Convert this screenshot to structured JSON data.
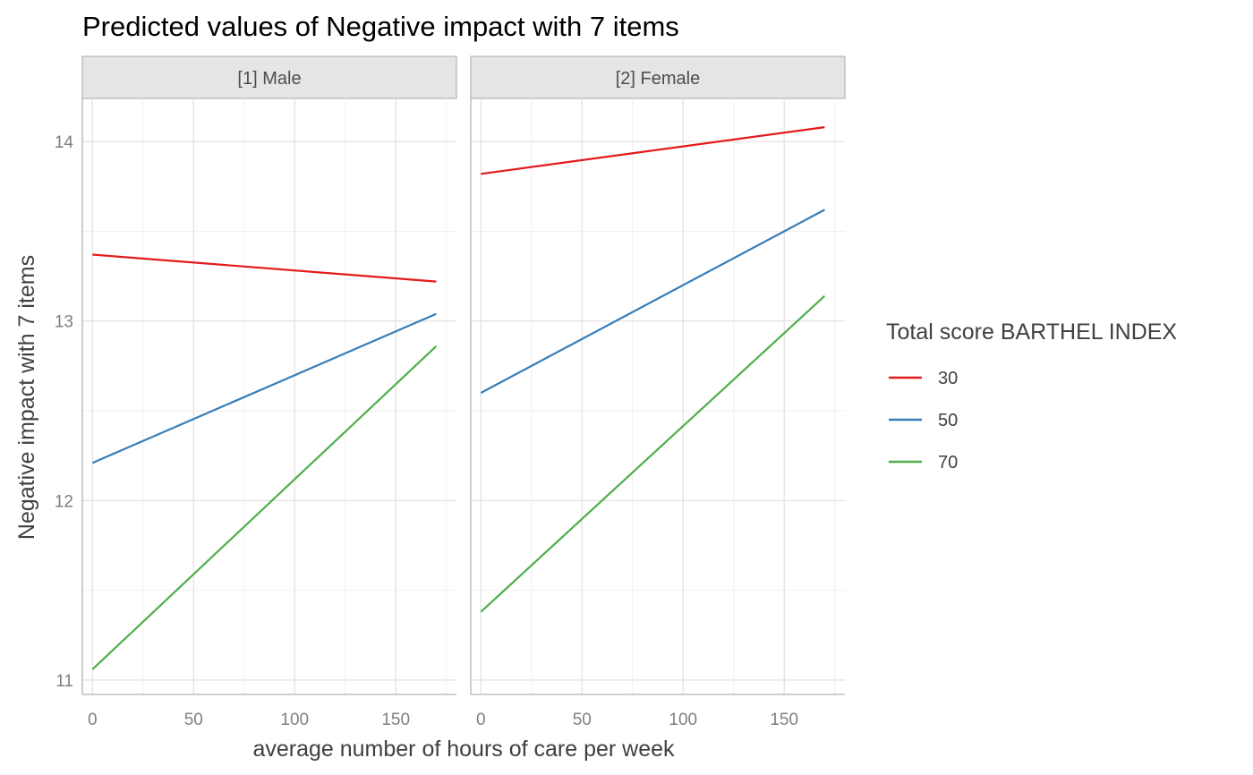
{
  "chart_data": {
    "type": "line",
    "title": "Predicted values of Negative impact with 7 items",
    "xlabel": "average number of hours of care per week",
    "ylabel": "Negative impact with 7 items",
    "xlim": [
      -5,
      180
    ],
    "ylim": [
      10.92,
      14.24
    ],
    "x_ticks": [
      0,
      50,
      100,
      150
    ],
    "y_ticks": [
      11,
      12,
      13,
      14
    ],
    "grid": true,
    "legend": {
      "title": "Total score BARTHEL INDEX",
      "position": "right",
      "entries": [
        "30",
        "50",
        "70"
      ]
    },
    "colors": {
      "30": "#e41a1c",
      "50": "#377eb8",
      "70": "#4daf4a"
    },
    "panels": [
      {
        "label": "[1] Male",
        "series": [
          {
            "name": "30",
            "x": [
              0,
              170
            ],
            "y": [
              13.37,
              13.22
            ]
          },
          {
            "name": "50",
            "x": [
              0,
              170
            ],
            "y": [
              12.21,
              13.04
            ]
          },
          {
            "name": "70",
            "x": [
              0,
              170
            ],
            "y": [
              11.06,
              12.86
            ]
          }
        ]
      },
      {
        "label": "[2] Female",
        "series": [
          {
            "name": "30",
            "x": [
              0,
              170
            ],
            "y": [
              13.82,
              14.08
            ]
          },
          {
            "name": "50",
            "x": [
              0,
              170
            ],
            "y": [
              12.6,
              13.62
            ]
          },
          {
            "name": "70",
            "x": [
              0,
              170
            ],
            "y": [
              11.38,
              13.14
            ]
          }
        ]
      }
    ]
  }
}
